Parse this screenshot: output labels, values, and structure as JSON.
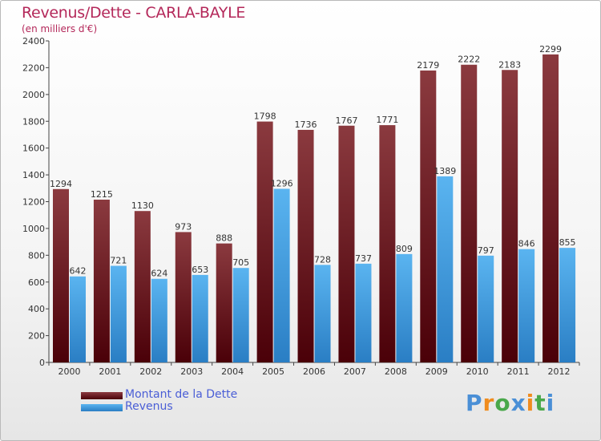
{
  "title": "Revenus/Dette - CARLA-BAYLE",
  "subtitle": "(en milliers d'€)",
  "brand": {
    "text": "Proxiti"
  },
  "colors": {
    "debt_top": "#8b3a3f",
    "debt_bottom": "#4a0008",
    "revenue_top": "#5ab4f0",
    "revenue_bottom": "#2a7ec4",
    "title": "#b4285a",
    "legend_text": "#4a5ed6"
  },
  "chart_data": {
    "type": "bar",
    "title": "Revenus/Dette - CARLA-BAYLE",
    "subtitle": "(en milliers d'€)",
    "categories": [
      "2000",
      "2001",
      "2002",
      "2003",
      "2004",
      "2005",
      "2006",
      "2007",
      "2008",
      "2009",
      "2010",
      "2011",
      "2012"
    ],
    "series": [
      {
        "name": "Montant de la Dette",
        "values": [
          1294,
          1215,
          1130,
          973,
          888,
          1798,
          1736,
          1767,
          1771,
          2179,
          2222,
          2183,
          2299
        ]
      },
      {
        "name": "Revenus",
        "values": [
          642,
          721,
          624,
          653,
          705,
          1296,
          728,
          737,
          809,
          1389,
          797,
          846,
          855
        ]
      }
    ],
    "ylim": [
      0,
      2400
    ],
    "yticks": [
      0,
      200,
      400,
      600,
      800,
      1000,
      1200,
      1400,
      1600,
      1800,
      2000,
      2200,
      2400
    ],
    "grid": false,
    "legend": "bottom-left"
  }
}
